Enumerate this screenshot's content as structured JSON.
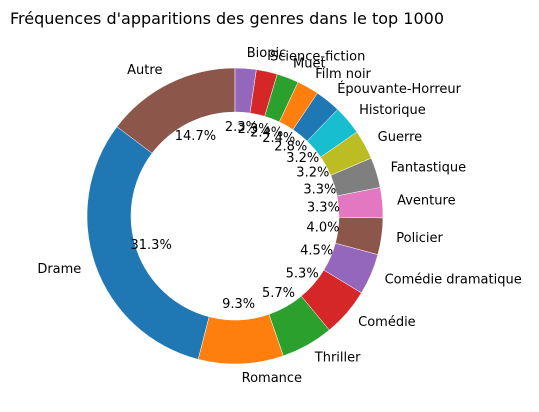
{
  "chart_data": {
    "type": "pie",
    "donut": true,
    "title": "Fréquences d'apparitions des genres dans le top 1000",
    "start_angle_deg": 90,
    "direction": "counterclockwise",
    "slices": [
      {
        "label": "Autre",
        "value": 14.7,
        "pct_label": "14.7%",
        "color": "#8c564b"
      },
      {
        "label": "Drame",
        "value": 31.3,
        "pct_label": "31.3%",
        "color": "#1f77b4"
      },
      {
        "label": "Romance",
        "value": 9.3,
        "pct_label": "9.3%",
        "color": "#ff7f0e"
      },
      {
        "label": "Thriller",
        "value": 5.7,
        "pct_label": "5.7%",
        "color": "#2ca02c"
      },
      {
        "label": "Comédie",
        "value": 5.3,
        "pct_label": "5.3%",
        "color": "#d62728"
      },
      {
        "label": "Comédie dramatique",
        "value": 4.5,
        "pct_label": "4.5%",
        "color": "#9467bd"
      },
      {
        "label": "Policier",
        "value": 4.0,
        "pct_label": "4.0%",
        "color": "#8c564b"
      },
      {
        "label": "Aventure",
        "value": 3.3,
        "pct_label": "3.3%",
        "color": "#e377c2"
      },
      {
        "label": "Fantastique",
        "value": 3.3,
        "pct_label": "3.3%",
        "color": "#7f7f7f"
      },
      {
        "label": "Guerre",
        "value": 3.2,
        "pct_label": "3.2%",
        "color": "#bcbd22"
      },
      {
        "label": "Historique",
        "value": 3.2,
        "pct_label": "3.2%",
        "color": "#17becf"
      },
      {
        "label": "Épouvante-Horreur",
        "value": 2.8,
        "pct_label": "2.8%",
        "color": "#1f77b4"
      },
      {
        "label": "Film noir",
        "value": 2.4,
        "pct_label": "2.4%",
        "color": "#ff7f0e"
      },
      {
        "label": "Muet",
        "value": 2.4,
        "pct_label": "2.4%",
        "color": "#2ca02c"
      },
      {
        "label": "Science-fiction",
        "value": 2.3,
        "pct_label": "2.3%",
        "color": "#d62728"
      },
      {
        "label": "Biopic",
        "value": 2.3,
        "pct_label": "2.3%",
        "color": "#9467bd"
      }
    ]
  }
}
